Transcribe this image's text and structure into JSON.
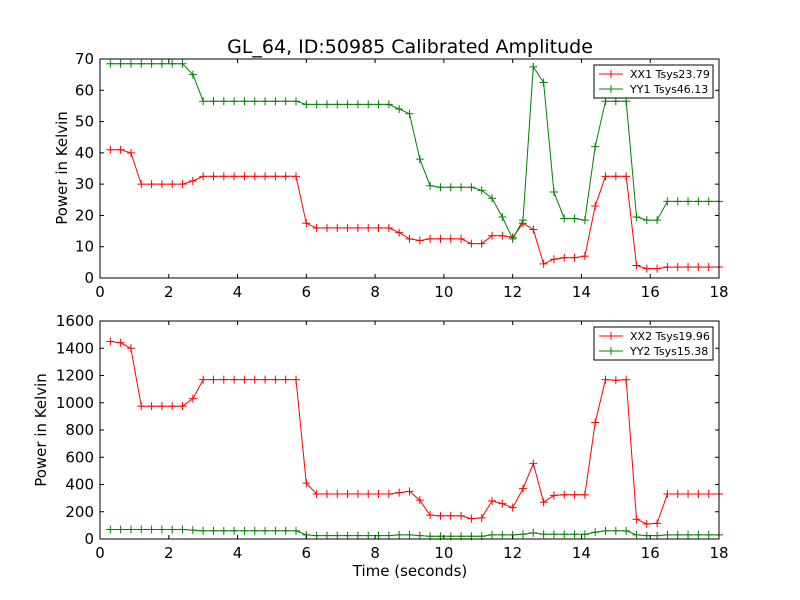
{
  "chart_data": [
    {
      "type": "line",
      "title": "GL_64, ID:50985 Calibrated Amplitude",
      "xlabel": "",
      "ylabel": "Power in Kelvin",
      "xlim": [
        0,
        18
      ],
      "ylim": [
        0,
        70
      ],
      "x_ticks": [
        0,
        2,
        4,
        6,
        8,
        10,
        12,
        14,
        16,
        18
      ],
      "y_ticks": [
        0,
        10,
        20,
        30,
        40,
        50,
        60,
        70
      ],
      "grid": false,
      "legend_position": "top-right",
      "x": [
        0.3,
        0.6,
        0.9,
        1.2,
        1.5,
        1.8,
        2.1,
        2.4,
        2.7,
        3.0,
        3.3,
        3.6,
        3.9,
        4.2,
        4.5,
        4.8,
        5.1,
        5.4,
        5.7,
        6.0,
        6.3,
        6.6,
        6.9,
        7.2,
        7.5,
        7.8,
        8.1,
        8.4,
        8.7,
        9.0,
        9.3,
        9.6,
        9.9,
        10.2,
        10.5,
        10.8,
        11.1,
        11.4,
        11.7,
        12.0,
        12.3,
        12.6,
        12.9,
        13.2,
        13.5,
        13.8,
        14.1,
        14.4,
        14.7,
        15.0,
        15.3,
        15.6,
        15.9,
        16.2,
        16.5,
        16.8,
        17.1,
        17.4,
        17.7,
        18.0
      ],
      "series": [
        {
          "name": "XX1 Tsys23.79",
          "color": "#ff0000",
          "values": [
            41,
            41,
            40,
            30,
            30,
            30,
            30,
            30,
            31,
            32.5,
            32.5,
            32.5,
            32.5,
            32.5,
            32.5,
            32.5,
            32.5,
            32.5,
            32.5,
            17.5,
            16,
            16,
            16,
            16,
            16,
            16,
            16,
            16,
            14.5,
            12.5,
            12,
            12.5,
            12.5,
            12.5,
            12.5,
            11,
            11,
            13.5,
            13.5,
            13,
            17.5,
            15.5,
            4.5,
            6,
            6.5,
            6.5,
            7,
            23,
            32.5,
            32.5,
            32.5,
            4,
            3,
            3,
            3.5,
            3.5,
            3.5,
            3.5,
            3.5,
            3.5
          ]
        },
        {
          "name": "YY1 Tsys46.13",
          "color": "#008000",
          "values": [
            68.5,
            68.5,
            68.5,
            68.5,
            68.5,
            68.5,
            68.5,
            68.5,
            65,
            56.5,
            56.5,
            56.5,
            56.5,
            56.5,
            56.5,
            56.5,
            56.5,
            56.5,
            56.5,
            55.5,
            55.5,
            55.5,
            55.5,
            55.5,
            55.5,
            55.5,
            55.5,
            55.5,
            54,
            52.5,
            38,
            29.5,
            29,
            29,
            29,
            29,
            28,
            25.5,
            19.5,
            12.5,
            18.5,
            67.5,
            62.5,
            27.5,
            19,
            19,
            18.5,
            42,
            56.5,
            56.5,
            56.5,
            19.5,
            18.5,
            18.5,
            24.5,
            24.5,
            24.5,
            24.5,
            24.5,
            24.5
          ]
        }
      ]
    },
    {
      "type": "line",
      "title": "",
      "xlabel": "Time (seconds)",
      "ylabel": "Power in Kelvin",
      "xlim": [
        0,
        18
      ],
      "ylim": [
        0,
        1600
      ],
      "x_ticks": [
        0,
        2,
        4,
        6,
        8,
        10,
        12,
        14,
        16,
        18
      ],
      "y_ticks": [
        0,
        200,
        400,
        600,
        800,
        1000,
        1200,
        1400,
        1600
      ],
      "grid": false,
      "legend_position": "top-right",
      "x": [
        0.3,
        0.6,
        0.9,
        1.2,
        1.5,
        1.8,
        2.1,
        2.4,
        2.7,
        3.0,
        3.3,
        3.6,
        3.9,
        4.2,
        4.5,
        4.8,
        5.1,
        5.4,
        5.7,
        6.0,
        6.3,
        6.6,
        6.9,
        7.2,
        7.5,
        7.8,
        8.1,
        8.4,
        8.7,
        9.0,
        9.3,
        9.6,
        9.9,
        10.2,
        10.5,
        10.8,
        11.1,
        11.4,
        11.7,
        12.0,
        12.3,
        12.6,
        12.9,
        13.2,
        13.5,
        13.8,
        14.1,
        14.4,
        14.7,
        15.0,
        15.3,
        15.6,
        15.9,
        16.2,
        16.5,
        16.8,
        17.1,
        17.4,
        17.7,
        18.0
      ],
      "series": [
        {
          "name": "XX2 Tsys19.96",
          "color": "#ff0000",
          "values": [
            1450,
            1440,
            1400,
            975,
            975,
            975,
            975,
            975,
            1030,
            1170,
            1170,
            1170,
            1170,
            1170,
            1170,
            1170,
            1170,
            1170,
            1170,
            410,
            330,
            330,
            330,
            330,
            330,
            330,
            330,
            330,
            340,
            350,
            285,
            175,
            170,
            170,
            170,
            150,
            155,
            280,
            260,
            230,
            370,
            555,
            270,
            320,
            325,
            325,
            325,
            855,
            1170,
            1165,
            1170,
            145,
            110,
            115,
            330,
            330,
            330,
            330,
            330,
            330
          ]
        },
        {
          "name": "YY2 Tsys15.38",
          "color": "#008000",
          "values": [
            70,
            70,
            70,
            70,
            70,
            70,
            70,
            70,
            65,
            60,
            60,
            60,
            60,
            60,
            60,
            60,
            60,
            60,
            60,
            30,
            25,
            25,
            25,
            25,
            25,
            25,
            25,
            25,
            30,
            30,
            25,
            20,
            20,
            20,
            20,
            20,
            20,
            30,
            30,
            30,
            35,
            45,
            35,
            35,
            35,
            35,
            35,
            50,
            60,
            60,
            60,
            30,
            25,
            25,
            30,
            30,
            30,
            30,
            30,
            30
          ]
        }
      ]
    }
  ]
}
